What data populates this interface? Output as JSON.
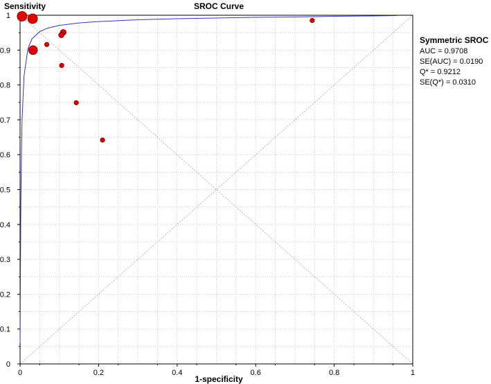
{
  "chart_data": {
    "type": "scatter",
    "title": "SROC Curve",
    "xlabel": "1-specificity",
    "ylabel": "Sensitivity",
    "xlim": [
      0,
      1
    ],
    "ylim": [
      0,
      1
    ],
    "x_ticks": [
      "0",
      "0.2",
      "0.4",
      "0.6",
      "0.8",
      "1"
    ],
    "y_ticks": [
      "0",
      "0.1",
      "0.2",
      "0.3",
      "0.4",
      "0.5",
      "0.6",
      "0.7",
      "0.8",
      "0.9",
      "1"
    ],
    "grid": true,
    "colors": {
      "points": "#e00000",
      "curve": "#3333cc",
      "grid": "#c8c8c8"
    },
    "series": [
      {
        "type": "scatter",
        "points": [
          {
            "x": 0.005,
            "y": 0.997,
            "weight": 2.2
          },
          {
            "x": 0.032,
            "y": 0.99,
            "weight": 2.2
          },
          {
            "x": 0.033,
            "y": 0.9,
            "weight": 2.0
          },
          {
            "x": 0.068,
            "y": 0.916,
            "weight": 1.0
          },
          {
            "x": 0.11,
            "y": 0.951,
            "weight": 1.3
          },
          {
            "x": 0.105,
            "y": 0.943,
            "weight": 1.2
          },
          {
            "x": 0.106,
            "y": 0.856,
            "weight": 1.0
          },
          {
            "x": 0.143,
            "y": 0.749,
            "weight": 1.0
          },
          {
            "x": 0.21,
            "y": 0.642,
            "weight": 1.0
          },
          {
            "x": 0.744,
            "y": 0.985,
            "weight": 1.0
          }
        ]
      },
      {
        "type": "line",
        "curve": "symmetric-sroc",
        "x": [
          0,
          0.002,
          0.005,
          0.01,
          0.02,
          0.03,
          0.05,
          0.07,
          0.1,
          0.15,
          0.2,
          0.3,
          0.4,
          0.5,
          0.6,
          0.7,
          0.8,
          0.9,
          0.96
        ],
        "y": [
          0.06,
          0.468,
          0.698,
          0.826,
          0.904,
          0.932,
          0.953,
          0.963,
          0.971,
          0.978,
          0.982,
          0.987,
          0.99,
          0.992,
          0.994,
          0.995,
          0.997,
          0.998,
          0.999
        ]
      }
    ]
  },
  "annotation": {
    "title": "Symmetric SROC",
    "lines": [
      "AUC = 0.9708",
      "SE(AUC) = 0.0190",
      "Q* = 0.9212",
      "SE(Q*) = 0.0310"
    ]
  }
}
